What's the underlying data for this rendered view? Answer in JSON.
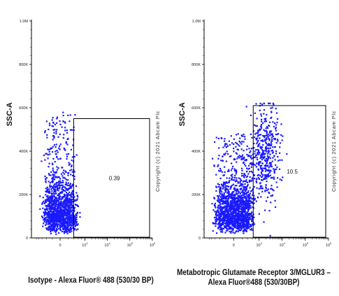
{
  "chart_data": [
    {
      "type": "scatter",
      "ylabel": "SSC-A",
      "xlabel": "",
      "caption": "Isotype - Alexa Fluor® 488 (530/30 BP)",
      "watermark": "Copyright (c) 2021 Abcam Plc",
      "x_scale": "log (biexponential)",
      "y_scale": "linear",
      "ylim": [
        0,
        1000000
      ],
      "y_ticks": [
        "0",
        "200K",
        "400K",
        "600K",
        "800K",
        "1.0M"
      ],
      "x_ticks": [
        {
          "base": "0",
          "exp": ""
        },
        {
          "base": "10",
          "exp": "3"
        },
        {
          "base": "10",
          "exp": "4"
        },
        {
          "base": "10",
          "exp": "5"
        },
        {
          "base": "10",
          "exp": "6"
        }
      ],
      "gate": {
        "label": "0.39",
        "x_range": [
          300,
          1000000
        ],
        "y_range": [
          0,
          550000
        ]
      },
      "point_color": "#1a1aff",
      "series": [
        {
          "cloud": {
            "x_center": 0,
            "x_spread": 180,
            "y_center": 130000,
            "y_spread": 110000,
            "y_max": 580000,
            "n": 1400
          }
        }
      ]
    },
    {
      "type": "scatter",
      "ylabel": "SSC-A",
      "xlabel": "",
      "caption": "Metabotropic Glutamate Receptor 3/MGLUR3 – Alexa Fluor®488 (530/30BP)",
      "watermark": "Copyright (c) 2021 Abcam Plc",
      "x_scale": "log (biexponential)",
      "y_scale": "linear",
      "ylim": [
        0,
        1000000
      ],
      "y_ticks": [
        "0",
        "200K",
        "400K",
        "600K",
        "800K",
        "1.0M"
      ],
      "x_ticks": [
        {
          "base": "0",
          "exp": ""
        },
        {
          "base": "10",
          "exp": "3"
        },
        {
          "base": "10",
          "exp": "4"
        },
        {
          "base": "10",
          "exp": "5"
        },
        {
          "base": "10",
          "exp": "6"
        }
      ],
      "gate": {
        "label": "10.5",
        "x_range": [
          550,
          1000000
        ],
        "y_range": [
          0,
          610000
        ]
      },
      "point_color": "#1a1aff",
      "series": [
        {
          "cloud": {
            "x_center": 20,
            "x_spread": 220,
            "y_center": 170000,
            "y_spread": 110000,
            "y_max": 480000,
            "n": 1500
          }
        },
        {
          "cloud": {
            "x_center": 1800,
            "x_spread": 0.35,
            "y_center": 380000,
            "y_spread": 110000,
            "y_max": 620000,
            "n": 450
          }
        }
      ]
    }
  ]
}
